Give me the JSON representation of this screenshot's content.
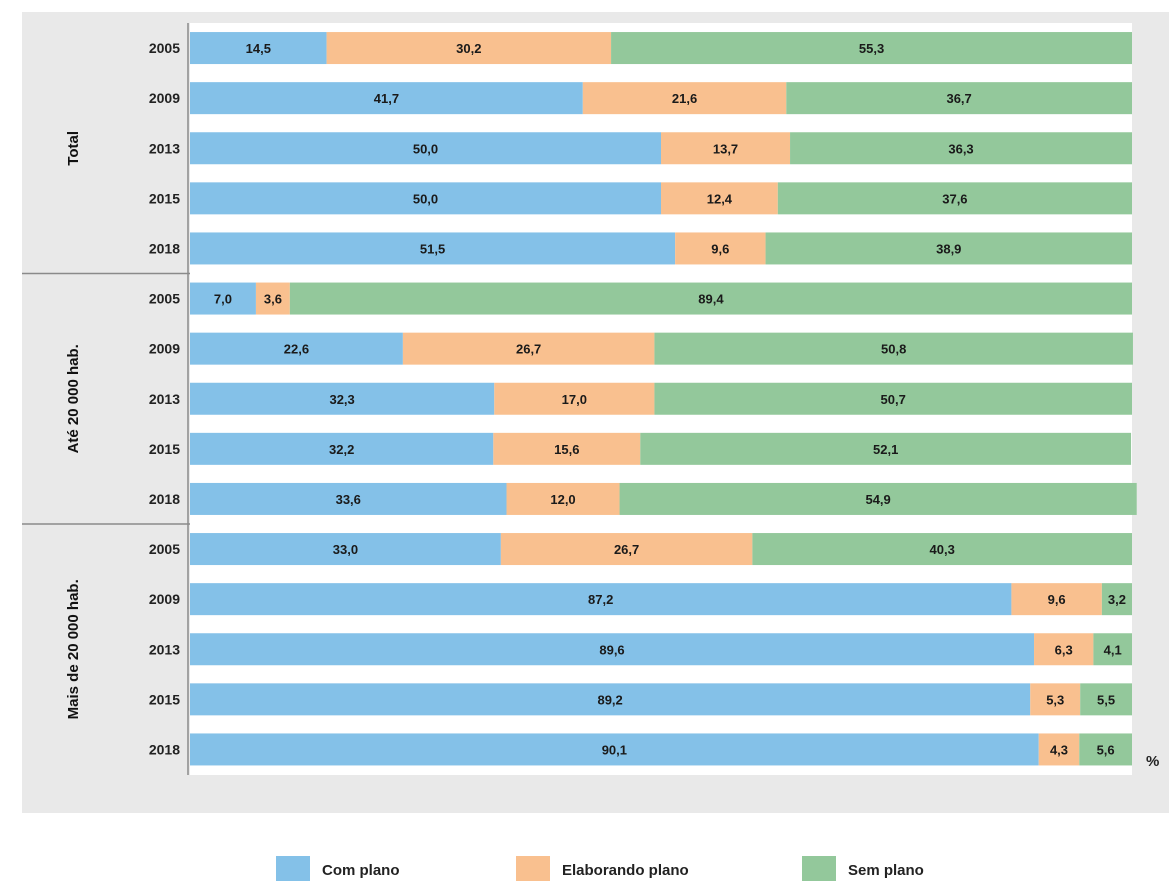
{
  "chart_data": {
    "type": "bar",
    "orientation": "horizontal",
    "stacked": true,
    "unit_label": "%",
    "xlim": [
      0,
      100
    ],
    "grid": false,
    "legend_position": "bottom",
    "series": [
      {
        "name": "Com plano",
        "color": "#84c1e8"
      },
      {
        "name": "Elaborando plano",
        "color": "#f9c08f"
      },
      {
        "name": "Sem plano",
        "color": "#93c89b"
      }
    ],
    "groups": [
      {
        "label": "Total",
        "rows": [
          {
            "year": "2005",
            "values": [
              14.5,
              30.2,
              55.3
            ],
            "labels": [
              "14,5",
              "30,2",
              "55,3"
            ]
          },
          {
            "year": "2009",
            "values": [
              41.7,
              21.6,
              36.7
            ],
            "labels": [
              "41,7",
              "21,6",
              "36,7"
            ]
          },
          {
            "year": "2013",
            "values": [
              50.0,
              13.7,
              36.3
            ],
            "labels": [
              "50,0",
              "13,7",
              "36,3"
            ]
          },
          {
            "year": "2015",
            "values": [
              50.0,
              12.4,
              37.6
            ],
            "labels": [
              "50,0",
              "12,4",
              "37,6"
            ]
          },
          {
            "year": "2018",
            "values": [
              51.5,
              9.6,
              38.9
            ],
            "labels": [
              "51,5",
              "9,6",
              "38,9"
            ]
          }
        ]
      },
      {
        "label": "Até 20 000 hab.",
        "rows": [
          {
            "year": "2005",
            "values": [
              7.0,
              3.6,
              89.4
            ],
            "labels": [
              "7,0",
              "3,6",
              "89,4"
            ]
          },
          {
            "year": "2009",
            "values": [
              22.6,
              26.7,
              50.8
            ],
            "labels": [
              "22,6",
              "26,7",
              "50,8"
            ]
          },
          {
            "year": "2013",
            "values": [
              32.3,
              17.0,
              50.7
            ],
            "labels": [
              "32,3",
              "17,0",
              "50,7"
            ]
          },
          {
            "year": "2015",
            "values": [
              32.2,
              15.6,
              52.1
            ],
            "labels": [
              "32,2",
              "15,6",
              "52,1"
            ]
          },
          {
            "year": "2018",
            "values": [
              33.6,
              12.0,
              54.9
            ],
            "labels": [
              "33,6",
              "12,0",
              "54,9"
            ]
          }
        ]
      },
      {
        "label": "Mais de 20 000 hab.",
        "rows": [
          {
            "year": "2005",
            "values": [
              33.0,
              26.7,
              40.3
            ],
            "labels": [
              "33,0",
              "26,7",
              "40,3"
            ]
          },
          {
            "year": "2009",
            "values": [
              87.2,
              9.6,
              3.2
            ],
            "labels": [
              "87,2",
              "9,6",
              "3,2"
            ]
          },
          {
            "year": "2013",
            "values": [
              89.6,
              6.3,
              4.1
            ],
            "labels": [
              "89,6",
              "6,3",
              "4,1"
            ]
          },
          {
            "year": "2015",
            "values": [
              89.2,
              5.3,
              5.5
            ],
            "labels": [
              "89,2",
              "5,3",
              "5,5"
            ]
          },
          {
            "year": "2018",
            "values": [
              90.1,
              4.3,
              5.6
            ],
            "labels": [
              "90,1",
              "4,3",
              "5,6"
            ]
          }
        ]
      }
    ]
  }
}
